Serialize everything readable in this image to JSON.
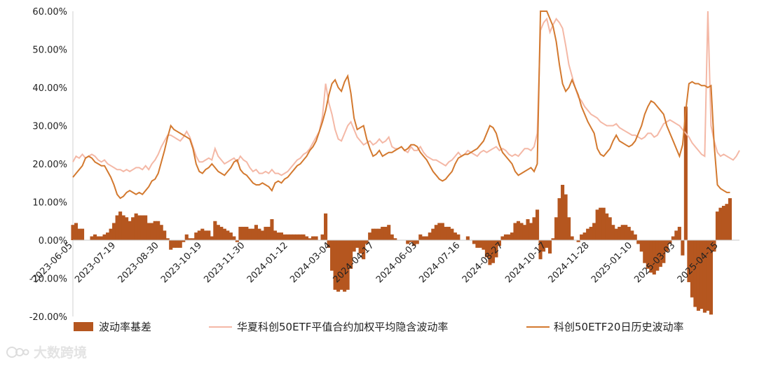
{
  "chart_data": {
    "type": "bar+line",
    "y_axis": {
      "min": -20,
      "max": 60,
      "ticks": [
        60,
        50,
        40,
        30,
        20,
        10,
        0,
        -10,
        -20
      ],
      "tick_labels": [
        "60.00%",
        "50.00%",
        "40.00%",
        "30.00%",
        "20.00%",
        "10.00%",
        "0.00%",
        "-10.00%",
        "-20.00%"
      ]
    },
    "x_axis": {
      "tick_labels": [
        "2023-06-05",
        "2023-07-19",
        "2023-08-30",
        "2023-10-19",
        "2023-11-30",
        "2024-01-12",
        "2024-03-04",
        "2024-04-17",
        "2024-06-03",
        "2024-07-16",
        "2024-08-27",
        "2024-10-17",
        "2024-11-28",
        "2025-01-10",
        "2025-03-03",
        "2025-04-15"
      ]
    },
    "legend": [
      "波动率基差",
      "华夏科创50ETF平值合约加权平均隐含波动率",
      "科创50ETF20日历史波动率"
    ],
    "colors": {
      "spread": "#b5561f",
      "implied": "#f4b8a6",
      "historical": "#d3792f"
    },
    "series": [
      {
        "name": "华夏科创50ETF平值合约加权平均隐含波动率",
        "values": [
          20.5,
          22.0,
          21.5,
          22.5,
          21.5,
          22.0,
          22.5,
          22.0,
          21.0,
          20.5,
          21.0,
          20.0,
          19.5,
          19.0,
          18.5,
          18.5,
          18.0,
          18.5,
          18.0,
          18.5,
          19.0,
          19.0,
          18.5,
          19.5,
          18.5,
          20.0,
          21.0,
          22.5,
          24.5,
          26.0,
          27.5,
          27.5,
          27.0,
          26.5,
          26.0,
          27.0,
          28.5,
          27.0,
          24.5,
          22.0,
          20.5,
          20.5,
          21.0,
          21.5,
          21.0,
          24.0,
          22.0,
          21.0,
          20.0,
          20.5,
          21.0,
          21.5,
          20.5,
          22.0,
          21.0,
          20.5,
          19.0,
          18.0,
          18.5,
          17.5,
          17.5,
          18.0,
          17.5,
          18.5,
          17.5,
          17.5,
          17.0,
          17.5,
          18.0,
          19.0,
          20.0,
          21.0,
          21.5,
          22.5,
          23.0,
          24.0,
          25.5,
          27.0,
          28.5,
          32.5,
          41.0,
          36.0,
          33.0,
          29.0,
          26.5,
          26.0,
          28.0,
          30.0,
          31.0,
          29.0,
          27.0,
          26.0,
          25.0,
          25.5,
          26.0,
          25.0,
          25.5,
          26.5,
          25.5,
          26.0,
          27.0,
          24.5,
          24.0,
          24.0,
          24.5,
          23.5,
          23.0,
          24.5,
          23.5,
          23.5,
          24.5,
          23.0,
          22.0,
          21.5,
          21.0,
          21.0,
          20.5,
          20.0,
          19.5,
          20.5,
          21.0,
          22.0,
          23.0,
          22.0,
          22.5,
          23.5,
          23.0,
          22.5,
          22.0,
          23.0,
          23.5,
          23.0,
          23.5,
          24.0,
          24.5,
          23.5,
          24.0,
          23.5,
          22.5,
          22.0,
          22.5,
          22.0,
          23.0,
          24.0,
          24.0,
          23.5,
          24.5,
          28.0,
          55.0,
          57.0,
          58.0,
          54.5,
          56.5,
          58.0,
          57.0,
          55.5,
          51.0,
          46.0,
          43.0,
          40.0,
          37.5,
          36.5,
          35.0,
          34.0,
          33.0,
          32.5,
          32.0,
          31.0,
          30.5,
          30.0,
          30.0,
          30.0,
          30.5,
          29.5,
          29.0,
          28.5,
          28.0,
          27.5,
          27.5,
          27.0,
          26.5,
          27.0,
          28.0,
          28.0,
          27.0,
          27.5,
          29.0,
          30.5,
          31.0,
          31.5,
          31.0,
          30.5,
          30.0,
          29.0,
          28.0,
          27.0,
          25.5,
          24.5,
          23.5,
          22.5,
          22.0,
          60.0,
          30.0,
          26.0,
          23.0,
          22.0,
          22.5,
          22.0,
          21.5,
          21.0,
          22.0,
          23.5
        ]
      },
      {
        "name": "科创50ETF20日历史波动率",
        "values": [
          16.5,
          17.5,
          18.5,
          19.5,
          21.5,
          22.0,
          21.5,
          20.5,
          20.0,
          19.5,
          19.5,
          18.0,
          16.5,
          14.5,
          12.0,
          11.0,
          11.5,
          12.5,
          13.0,
          12.5,
          12.0,
          12.5,
          12.0,
          13.0,
          14.0,
          15.5,
          16.0,
          17.5,
          20.5,
          23.5,
          27.0,
          30.0,
          29.0,
          28.5,
          28.0,
          27.5,
          27.0,
          26.5,
          24.0,
          20.0,
          18.0,
          17.5,
          18.5,
          19.0,
          20.0,
          19.0,
          18.0,
          17.5,
          17.0,
          18.0,
          19.0,
          20.5,
          21.0,
          18.5,
          17.5,
          17.0,
          16.0,
          15.0,
          14.5,
          14.5,
          15.0,
          14.5,
          14.0,
          13.0,
          15.0,
          15.5,
          15.0,
          16.0,
          16.5,
          17.5,
          18.5,
          19.5,
          20.0,
          21.0,
          22.0,
          23.5,
          24.5,
          26.0,
          28.5,
          31.0,
          34.0,
          38.0,
          41.0,
          42.0,
          40.0,
          39.0,
          41.5,
          43.0,
          38.5,
          32.0,
          29.0,
          29.5,
          30.0,
          26.5,
          24.0,
          22.0,
          22.5,
          23.5,
          22.0,
          22.5,
          23.0,
          23.0,
          23.5,
          24.0,
          24.5,
          23.5,
          24.0,
          25.0,
          25.0,
          24.5,
          23.0,
          22.0,
          21.0,
          19.5,
          18.0,
          17.0,
          16.0,
          15.5,
          16.0,
          17.0,
          18.0,
          20.0,
          21.5,
          22.0,
          22.5,
          22.5,
          23.0,
          23.5,
          24.0,
          25.0,
          26.0,
          28.0,
          30.0,
          29.5,
          28.0,
          25.0,
          23.0,
          22.0,
          21.0,
          20.0,
          18.0,
          17.0,
          17.5,
          18.0,
          18.5,
          19.0,
          18.0,
          20.0,
          60.0,
          60.0,
          60.0,
          58.0,
          56.0,
          52.0,
          46.0,
          41.0,
          39.0,
          40.0,
          42.0,
          40.0,
          38.0,
          35.0,
          33.0,
          31.0,
          29.5,
          28.0,
          24.0,
          22.5,
          22.0,
          23.0,
          24.0,
          26.0,
          27.5,
          26.0,
          25.5,
          25.0,
          24.5,
          25.0,
          26.0,
          28.0,
          30.0,
          33.0,
          35.0,
          36.5,
          36.0,
          35.0,
          34.0,
          33.0,
          30.0,
          28.0,
          26.0,
          24.0,
          22.0,
          25.0,
          34.0,
          41.0,
          41.5,
          41.0,
          41.0,
          40.5,
          40.5,
          40.0,
          40.5,
          25.0,
          14.5,
          13.5,
          13.0,
          12.5,
          12.5
        ]
      },
      {
        "name": "波动率基差",
        "values": [
          4.0,
          4.5,
          3.0,
          3.0,
          0.0,
          0.0,
          1.0,
          1.5,
          1.0,
          1.0,
          1.5,
          2.0,
          3.0,
          4.5,
          6.5,
          7.5,
          6.5,
          6.0,
          5.0,
          6.0,
          7.0,
          6.5,
          6.5,
          6.5,
          4.5,
          4.5,
          5.0,
          5.0,
          4.0,
          2.5,
          0.5,
          -2.5,
          -2.0,
          -2.0,
          -2.0,
          -0.5,
          1.5,
          0.5,
          0.5,
          2.0,
          2.5,
          3.0,
          2.5,
          2.5,
          1.0,
          5.0,
          4.0,
          3.5,
          3.0,
          2.5,
          2.0,
          1.0,
          -0.5,
          3.5,
          3.5,
          3.5,
          3.0,
          3.0,
          4.0,
          3.0,
          2.5,
          3.5,
          3.5,
          5.5,
          2.5,
          2.0,
          2.0,
          1.5,
          1.5,
          1.5,
          1.5,
          1.5,
          1.5,
          1.5,
          1.0,
          0.5,
          1.0,
          1.0,
          0.0,
          1.5,
          7.0,
          -2.0,
          -8.0,
          -13.0,
          -13.5,
          -13.0,
          -13.5,
          -13.0,
          -7.5,
          -3.0,
          -2.0,
          -3.5,
          -5.0,
          -1.0,
          2.0,
          3.0,
          3.0,
          3.0,
          3.5,
          3.5,
          4.0,
          1.5,
          0.5,
          0.0,
          0.0,
          0.0,
          -1.0,
          -0.5,
          -1.5,
          -1.0,
          1.5,
          1.0,
          1.0,
          2.0,
          3.0,
          4.0,
          4.5,
          4.5,
          3.5,
          3.5,
          3.0,
          2.0,
          1.5,
          0.0,
          0.0,
          1.0,
          0.0,
          -1.0,
          -2.0,
          -2.0,
          -2.5,
          -4.5,
          -6.5,
          -6.0,
          -4.5,
          -1.5,
          1.0,
          1.5,
          1.5,
          2.0,
          4.5,
          5.0,
          4.5,
          4.0,
          5.5,
          4.5,
          6.0,
          8.0,
          -5.0,
          -3.0,
          -2.0,
          -3.5,
          0.5,
          6.0,
          11.0,
          14.5,
          12.0,
          6.0,
          1.0,
          0.0,
          -0.5,
          1.5,
          2.0,
          3.0,
          3.5,
          4.5,
          8.0,
          8.5,
          8.5,
          7.0,
          6.0,
          4.0,
          3.0,
          3.5,
          4.0,
          4.0,
          3.5,
          2.5,
          1.5,
          -1.0,
          -3.0,
          -6.0,
          -7.5,
          -8.5,
          -9.0,
          -8.0,
          -7.0,
          -6.0,
          -3.0,
          -1.0,
          1.0,
          2.5,
          3.5,
          -4.0,
          35.0,
          -11.0,
          -15.0,
          -17.5,
          -18.5,
          -18.0,
          -19.0,
          -18.5,
          -19.5,
          -3.0,
          7.5,
          8.5,
          9.0,
          9.5,
          11.0
        ],
        "clip_min": -20.0
      }
    ],
    "grid": false
  },
  "watermark": {
    "text": "大数跨境"
  }
}
